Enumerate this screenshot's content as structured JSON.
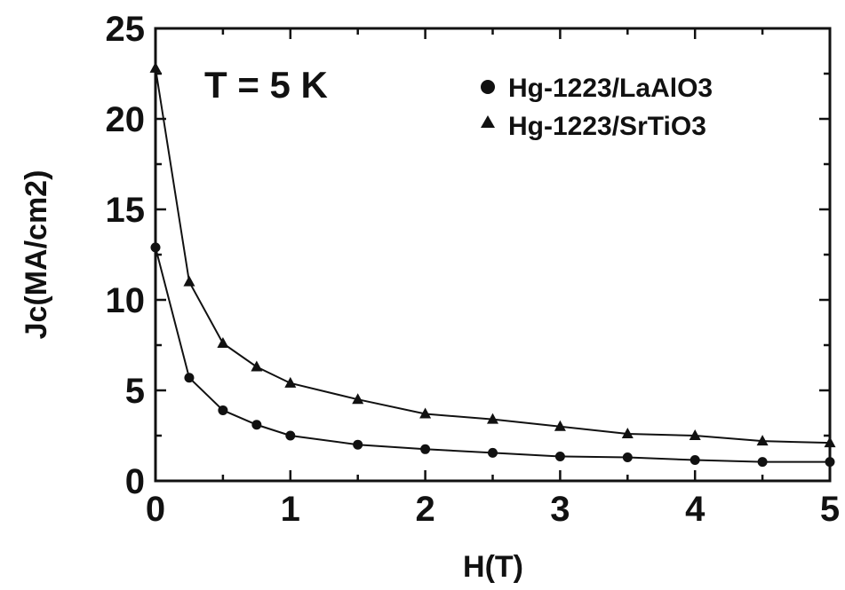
{
  "chart_data": {
    "type": "line",
    "title": "",
    "xlabel": "H(T)",
    "ylabel": "Jc(MA/cm2)",
    "xlim": [
      0,
      5
    ],
    "ylim": [
      0,
      25
    ],
    "xticks": [
      "0",
      "1",
      "2",
      "3",
      "4",
      "5"
    ],
    "yticks": [
      "0",
      "5",
      "10",
      "15",
      "20",
      "25"
    ],
    "grid": false,
    "legend_position": "top-right",
    "annotations": [
      "T = 5 K"
    ],
    "series": [
      {
        "name": "Hg-1223/LaAlO3",
        "marker": "circle",
        "x": [
          0,
          0.25,
          0.5,
          0.75,
          1.0,
          1.5,
          2.0,
          2.5,
          3.0,
          3.5,
          4.0,
          4.5,
          5.0
        ],
        "y": [
          12.9,
          5.7,
          3.9,
          3.1,
          2.5,
          2.0,
          1.75,
          1.55,
          1.35,
          1.3,
          1.15,
          1.05,
          1.05
        ]
      },
      {
        "name": "Hg-1223/SrTiO3",
        "marker": "triangle",
        "x": [
          0,
          0.25,
          0.5,
          0.75,
          1.0,
          1.5,
          2.0,
          2.5,
          3.0,
          3.5,
          4.0,
          4.5,
          5.0
        ],
        "y": [
          22.8,
          11.0,
          7.6,
          6.3,
          5.4,
          4.5,
          3.7,
          3.4,
          3.0,
          2.6,
          2.5,
          2.2,
          2.1
        ]
      }
    ]
  }
}
